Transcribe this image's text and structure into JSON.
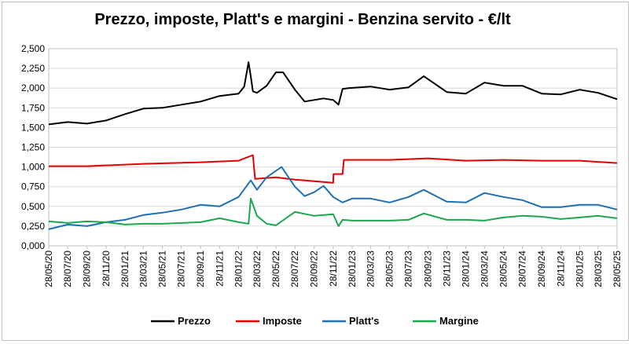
{
  "chart_data": {
    "type": "line",
    "title": "Prezzo, imposte, Platt's e margini - Benzina servito - €/lt",
    "xlabel": "",
    "ylabel": "",
    "ylim": [
      0,
      2.5
    ],
    "y_ticks": [
      "0,000",
      "0,250",
      "0,500",
      "0,750",
      "1,000",
      "1,250",
      "1,500",
      "1,750",
      "2,000",
      "2,250",
      "2,500"
    ],
    "x_ticks": [
      "28/05/20",
      "28/07/20",
      "28/09/20",
      "28/11/20",
      "28/01/21",
      "28/03/21",
      "28/05/21",
      "28/07/21",
      "28/09/21",
      "28/11/21",
      "28/01/22",
      "28/03/22",
      "28/05/22",
      "28/07/22",
      "28/09/22",
      "28/11/22",
      "28/01/23",
      "28/03/23",
      "28/05/23",
      "28/07/23",
      "28/09/23",
      "28/11/23",
      "28/01/24",
      "28/03/24",
      "28/05/24",
      "28/07/24",
      "28/09/24",
      "28/11/24",
      "28/01/25",
      "28/03/25",
      "28/05/25"
    ],
    "grid": true,
    "legend_position": "bottom",
    "series": [
      {
        "name": "Prezzo",
        "color": "#000000",
        "x": [
          "28/05/20",
          "28/07/20",
          "28/09/20",
          "28/11/20",
          "28/01/21",
          "28/03/21",
          "28/05/21",
          "28/07/21",
          "28/09/21",
          "28/11/21",
          "28/01/22",
          "15/02/22",
          "01/03/22",
          "08/03/22",
          "15/03/22",
          "28/03/22",
          "28/04/22",
          "28/05/22",
          "20/06/22",
          "28/07/22",
          "28/08/22",
          "28/09/22",
          "28/10/22",
          "28/11/22",
          "15/12/22",
          "28/12/22",
          "15/01/23",
          "28/03/23",
          "28/05/23",
          "28/07/23",
          "15/09/23",
          "28/11/23",
          "28/01/24",
          "28/03/24",
          "28/05/24",
          "28/07/24",
          "28/09/24",
          "28/11/24",
          "28/01/25",
          "28/03/25",
          "28/05/25"
        ],
        "values": [
          1.54,
          1.57,
          1.55,
          1.59,
          1.67,
          1.74,
          1.75,
          1.79,
          1.83,
          1.9,
          1.93,
          2.02,
          2.33,
          2.15,
          1.96,
          1.94,
          2.03,
          2.2,
          2.2,
          1.98,
          1.83,
          1.85,
          1.87,
          1.85,
          1.79,
          1.99,
          2.0,
          2.02,
          1.98,
          2.01,
          2.15,
          1.95,
          1.93,
          2.07,
          2.03,
          2.03,
          1.93,
          1.92,
          1.98,
          1.94,
          1.86
        ]
      },
      {
        "name": "Imposte",
        "color": "#e60000",
        "x": [
          "28/05/20",
          "28/09/20",
          "28/11/20",
          "28/03/21",
          "28/09/21",
          "28/11/21",
          "28/01/22",
          "15/03/22",
          "22/03/22",
          "28/05/22",
          "28/07/22",
          "28/09/22",
          "28/11/22",
          "29/11/22",
          "28/12/22",
          "01/01/23",
          "28/05/23",
          "28/09/23",
          "28/01/24",
          "28/05/24",
          "28/09/24",
          "28/01/25",
          "28/05/25"
        ],
        "values": [
          1.01,
          1.01,
          1.02,
          1.04,
          1.06,
          1.07,
          1.08,
          1.15,
          0.85,
          0.87,
          0.84,
          0.82,
          0.8,
          0.91,
          0.91,
          1.09,
          1.09,
          1.11,
          1.08,
          1.09,
          1.08,
          1.08,
          1.05
        ]
      },
      {
        "name": "Platt's",
        "color": "#1f6fb5",
        "x": [
          "28/05/20",
          "28/07/20",
          "28/09/20",
          "28/11/20",
          "28/01/21",
          "28/03/21",
          "28/05/21",
          "28/07/21",
          "28/09/21",
          "28/11/21",
          "28/01/22",
          "08/03/22",
          "28/03/22",
          "28/04/22",
          "15/06/22",
          "28/07/22",
          "28/08/22",
          "28/09/22",
          "28/10/22",
          "28/11/22",
          "28/12/22",
          "28/01/23",
          "28/03/23",
          "28/05/23",
          "28/07/23",
          "15/09/23",
          "28/11/23",
          "28/01/24",
          "28/03/24",
          "28/05/24",
          "28/07/24",
          "28/09/24",
          "28/11/24",
          "28/01/25",
          "28/03/25",
          "28/05/25"
        ],
        "values": [
          0.21,
          0.27,
          0.25,
          0.3,
          0.33,
          0.39,
          0.42,
          0.46,
          0.52,
          0.5,
          0.62,
          0.83,
          0.71,
          0.87,
          1.0,
          0.75,
          0.63,
          0.68,
          0.76,
          0.62,
          0.55,
          0.6,
          0.6,
          0.55,
          0.62,
          0.71,
          0.56,
          0.55,
          0.67,
          0.62,
          0.58,
          0.49,
          0.49,
          0.52,
          0.52,
          0.46
        ]
      },
      {
        "name": "Margine",
        "color": "#1aa84d",
        "x": [
          "28/05/20",
          "28/07/20",
          "28/09/20",
          "28/11/20",
          "28/01/21",
          "28/03/21",
          "28/05/21",
          "28/07/21",
          "28/09/21",
          "28/11/21",
          "28/01/22",
          "01/03/22",
          "08/03/22",
          "28/03/22",
          "28/04/22",
          "28/05/22",
          "28/07/22",
          "28/09/22",
          "28/11/22",
          "15/12/22",
          "28/12/22",
          "28/01/23",
          "28/05/23",
          "28/07/23",
          "15/09/23",
          "28/11/23",
          "28/01/24",
          "28/03/24",
          "28/05/24",
          "28/07/24",
          "28/09/24",
          "28/11/24",
          "28/01/25",
          "28/03/25",
          "28/05/25"
        ],
        "values": [
          0.31,
          0.29,
          0.31,
          0.3,
          0.27,
          0.28,
          0.28,
          0.29,
          0.3,
          0.35,
          0.3,
          0.28,
          0.6,
          0.38,
          0.28,
          0.26,
          0.43,
          0.38,
          0.4,
          0.25,
          0.33,
          0.32,
          0.32,
          0.33,
          0.41,
          0.33,
          0.33,
          0.32,
          0.36,
          0.38,
          0.37,
          0.34,
          0.36,
          0.38,
          0.35
        ]
      }
    ]
  }
}
